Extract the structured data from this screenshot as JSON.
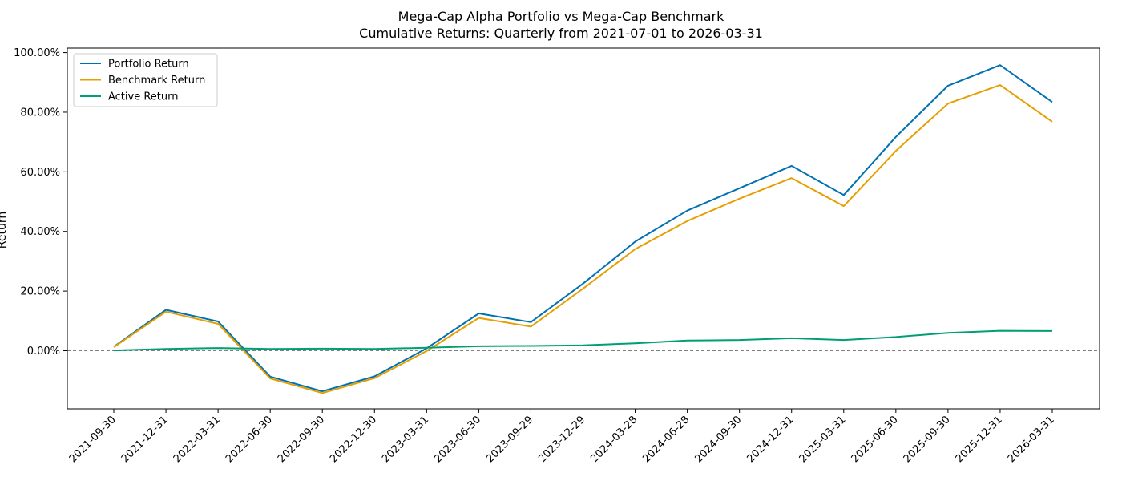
{
  "chart_data": {
    "type": "line",
    "title": "Mega-Cap Alpha Portfolio vs Mega-Cap Benchmark",
    "subtitle": "Cumulative Returns: Quarterly from 2021-07-01 to 2026-03-31",
    "xlabel": "",
    "ylabel": "Return",
    "x": [
      "2021-09-30",
      "2021-12-31",
      "2022-03-31",
      "2022-06-30",
      "2022-09-30",
      "2022-12-30",
      "2023-03-31",
      "2023-06-30",
      "2023-09-29",
      "2023-12-29",
      "2024-03-28",
      "2024-06-28",
      "2024-09-30",
      "2024-12-31",
      "2025-03-31",
      "2025-06-30",
      "2025-09-30",
      "2025-12-31",
      "2026-03-31"
    ],
    "ylim": [
      -19.5,
      101.5
    ],
    "yticks": [
      0,
      20,
      40,
      60,
      80,
      100
    ],
    "ytick_labels": [
      "0.00%",
      "20.00%",
      "40.00%",
      "60.00%",
      "80.00%",
      "100.00%"
    ],
    "y_unit": "%",
    "grid": false,
    "legend_position": "top-left",
    "reference_line": {
      "y": 0,
      "style": "dashed",
      "color": "#808080"
    },
    "series": [
      {
        "name": "Portfolio Return",
        "color": "#0072B2",
        "values": [
          1.3,
          13.7,
          9.8,
          -8.7,
          -13.6,
          -8.6,
          0.8,
          12.5,
          9.6,
          22.5,
          36.6,
          47.0,
          54.5,
          62.0,
          52.2,
          71.7,
          88.9,
          95.8,
          83.4
        ]
      },
      {
        "name": "Benchmark Return",
        "color": "#E69F00",
        "values": [
          1.2,
          13.1,
          9.0,
          -9.3,
          -14.2,
          -9.2,
          -0.1,
          11.0,
          8.1,
          20.8,
          34.1,
          43.5,
          51.0,
          57.9,
          48.5,
          67.0,
          82.9,
          89.1,
          76.8
        ]
      },
      {
        "name": "Active Return",
        "color": "#009E73",
        "values": [
          0.1,
          0.6,
          0.9,
          0.6,
          0.7,
          0.6,
          1.0,
          1.5,
          1.6,
          1.8,
          2.5,
          3.4,
          3.6,
          4.2,
          3.6,
          4.6,
          6.0,
          6.7,
          6.6
        ]
      }
    ]
  }
}
